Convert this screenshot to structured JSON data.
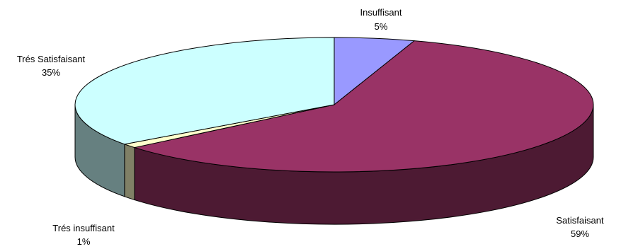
{
  "chart_data": {
    "type": "pie",
    "variant": "3d",
    "title": "",
    "slices": [
      {
        "label": "Insuffisant",
        "value": 5,
        "percent_label": "5%",
        "color": "#9999ff",
        "side_color": "#5a5a99"
      },
      {
        "label": "Satisfaisant",
        "value": 59,
        "percent_label": "59%",
        "color": "#993366",
        "side_color": "#4d1a33"
      },
      {
        "label": "Trés insuffisant",
        "value": 1,
        "percent_label": "1%",
        "color": "#ffffcc",
        "side_color": "#808066"
      },
      {
        "label": "Trés Satisfaisant",
        "value": 35,
        "percent_label": "35%",
        "color": "#ccffff",
        "side_color": "#668080"
      }
    ],
    "outline_color": "#000000"
  }
}
